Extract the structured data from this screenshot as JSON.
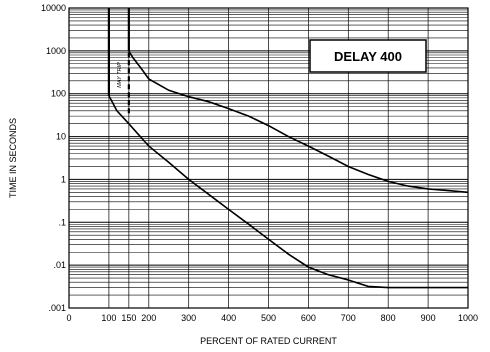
{
  "chart_data": {
    "type": "line",
    "title": "DELAY 400",
    "xlabel": "PERCENT OF RATED CURRENT",
    "ylabel": "TIME IN SECONDS",
    "x_ticks": [
      0,
      100,
      150,
      200,
      300,
      400,
      500,
      600,
      700,
      800,
      900,
      1000
    ],
    "x_tick_labels": [
      "0",
      "100",
      "150",
      "200",
      "300",
      "400",
      "500",
      "600",
      "700",
      "800",
      "900",
      "1000"
    ],
    "y_scale": "log",
    "y_ticks": [
      0.001,
      0.01,
      0.1,
      1,
      10,
      100,
      1000,
      10000
    ],
    "y_tick_labels": [
      ".001",
      ".01",
      ".1",
      "1",
      "10",
      "100",
      "1000",
      "10000"
    ],
    "xlim": [
      0,
      1000
    ],
    "ylim": [
      0.001,
      10000
    ],
    "grid": true,
    "annotation": "MAY TRIP",
    "series": [
      {
        "name": "",
        "x": [
          150,
          150,
          160,
          180,
          200,
          250,
          300,
          350,
          400,
          450,
          500,
          550,
          600,
          650,
          700,
          750,
          800,
          850,
          900,
          950,
          1000
        ],
        "y": [
          1000,
          1000,
          700,
          400,
          220,
          120,
          85,
          65,
          45,
          30,
          18,
          10,
          6,
          3.5,
          2,
          1.3,
          0.9,
          0.7,
          0.6,
          0.55,
          0.5
        ]
      },
      {
        "name": "",
        "x": [
          100,
          100,
          120,
          150,
          200,
          250,
          300,
          350,
          400,
          450,
          500,
          550,
          600,
          650,
          700,
          750,
          800,
          850,
          900,
          950,
          1000
        ],
        "y": [
          90,
          90,
          40,
          20,
          6,
          2.5,
          1,
          0.45,
          0.2,
          0.09,
          0.04,
          0.018,
          0.009,
          0.006,
          0.0045,
          0.0032,
          0.003,
          0.003,
          0.003,
          0.003,
          0.003
        ]
      }
    ],
    "limits": [
      {
        "x": 100,
        "y_from": 90,
        "y_to": 10000
      },
      {
        "x": 150,
        "y_from": 1000,
        "y_to": 10000
      },
      {
        "x": 150,
        "y_from": 35,
        "y_to": 1000,
        "dashed": true
      }
    ]
  }
}
